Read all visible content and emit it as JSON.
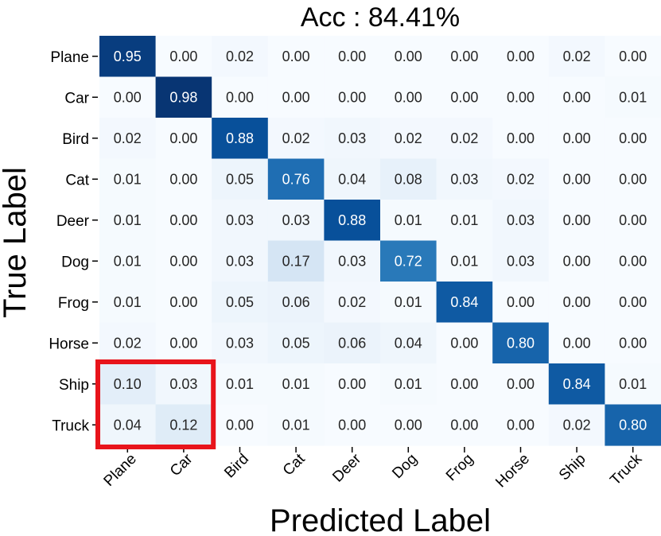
{
  "chart_data": {
    "type": "heatmap",
    "title": "Acc : 84.41%",
    "xlabel": "Predicted Label",
    "ylabel": "True Label",
    "x_categories": [
      "Plane",
      "Car",
      "Bird",
      "Cat",
      "Deer",
      "Dog",
      "Frog",
      "Horse",
      "Ship",
      "Truck"
    ],
    "y_categories": [
      "Plane",
      "Car",
      "Bird",
      "Cat",
      "Deer",
      "Dog",
      "Frog",
      "Horse",
      "Ship",
      "Truck"
    ],
    "values": [
      [
        0.95,
        0.0,
        0.02,
        0.0,
        0.0,
        0.0,
        0.0,
        0.0,
        0.02,
        0.0
      ],
      [
        0.0,
        0.98,
        0.0,
        0.0,
        0.0,
        0.0,
        0.0,
        0.0,
        0.0,
        0.01
      ],
      [
        0.02,
        0.0,
        0.88,
        0.02,
        0.03,
        0.02,
        0.02,
        0.0,
        0.0,
        0.0
      ],
      [
        0.01,
        0.0,
        0.05,
        0.76,
        0.04,
        0.08,
        0.03,
        0.02,
        0.0,
        0.0
      ],
      [
        0.01,
        0.0,
        0.03,
        0.03,
        0.88,
        0.01,
        0.01,
        0.03,
        0.0,
        0.0
      ],
      [
        0.01,
        0.0,
        0.03,
        0.17,
        0.03,
        0.72,
        0.01,
        0.03,
        0.0,
        0.0
      ],
      [
        0.01,
        0.0,
        0.05,
        0.06,
        0.02,
        0.01,
        0.84,
        0.0,
        0.0,
        0.0
      ],
      [
        0.02,
        0.0,
        0.03,
        0.05,
        0.06,
        0.04,
        0.0,
        0.8,
        0.0,
        0.0
      ],
      [
        0.1,
        0.03,
        0.01,
        0.01,
        0.0,
        0.01,
        0.0,
        0.0,
        0.84,
        0.01
      ],
      [
        0.04,
        0.12,
        0.0,
        0.01,
        0.0,
        0.0,
        0.0,
        0.0,
        0.02,
        0.8
      ]
    ],
    "value_format": "2-decimal",
    "colormap": "Blues",
    "vmin": 0,
    "vmax": 1,
    "highlight": {
      "color": "#e8141b",
      "rows": [
        "Ship",
        "Truck"
      ],
      "cols": [
        "Plane",
        "Car"
      ]
    }
  }
}
